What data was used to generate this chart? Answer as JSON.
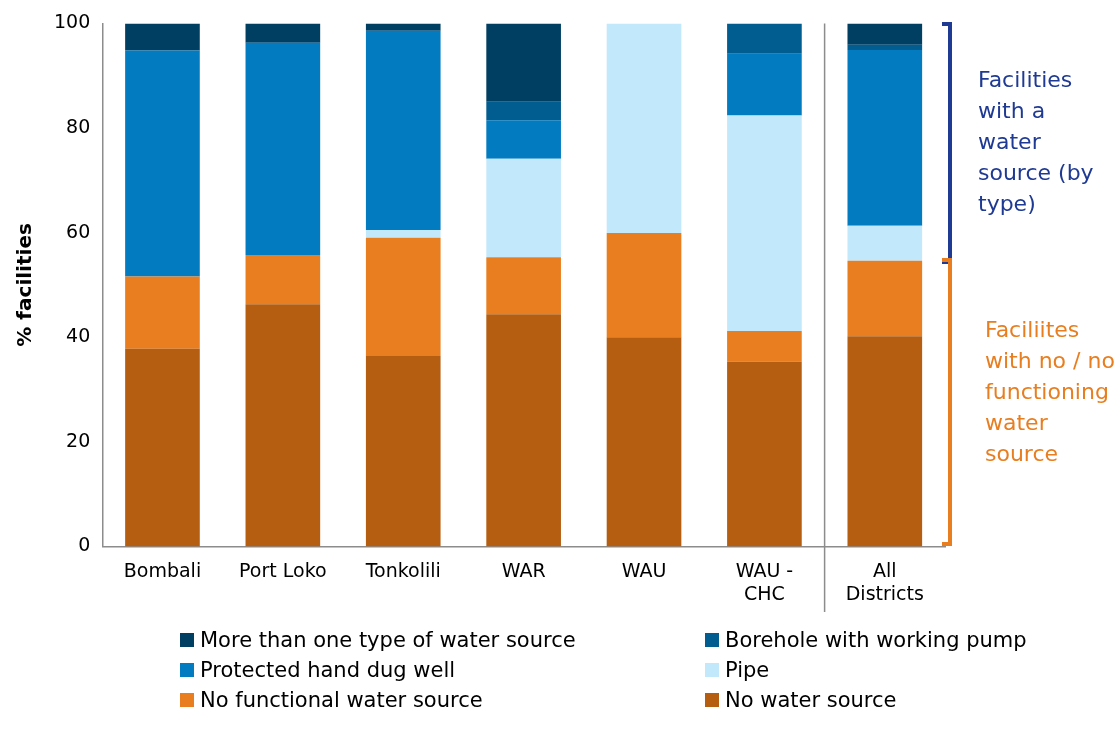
{
  "chart_data": {
    "type": "bar",
    "stacked": true,
    "ylabel": "% facilities",
    "categories": [
      "Bombali",
      "Port Loko",
      "Tonkolili",
      "WAR",
      "WAU",
      "WAU -\nCHC",
      "All\nDistricts"
    ],
    "series": [
      {
        "name": "No water source",
        "color": "#b55e11",
        "values": [
          37.8,
          46.3,
          36.4,
          44.4,
          40.0,
          35.3,
          40.2
        ]
      },
      {
        "name": "No functional water source",
        "color": "#e87e1f",
        "values": [
          13.8,
          9.4,
          22.6,
          10.9,
          19.9,
          5.9,
          14.4
        ]
      },
      {
        "name": "Pipe",
        "color": "#c2e8fc",
        "values": [
          0,
          0,
          1.5,
          18.8,
          40.1,
          41.2,
          6.7
        ]
      },
      {
        "name": "Protected hand dug well",
        "color": "#027bc1",
        "values": [
          43.2,
          40.6,
          38.1,
          7.4,
          0,
          11.8,
          33.6
        ]
      },
      {
        "name": "Borehole with working pump",
        "color": "#015c8f",
        "values": [
          0,
          0,
          0,
          3.5,
          0,
          5.8,
          1.0
        ]
      },
      {
        "name": "More than one type of water source",
        "color": "#003f62",
        "values": [
          5.2,
          3.7,
          1.4,
          15.0,
          0,
          0,
          4.1
        ]
      }
    ],
    "ylim": [
      0,
      100
    ],
    "yticks": [
      0,
      20,
      40,
      60,
      80,
      100
    ],
    "grid": false,
    "legend": "bottom",
    "annotations": [
      "Facilities with a water source (by type)",
      "Faciliites with no / no functioning water source"
    ]
  }
}
